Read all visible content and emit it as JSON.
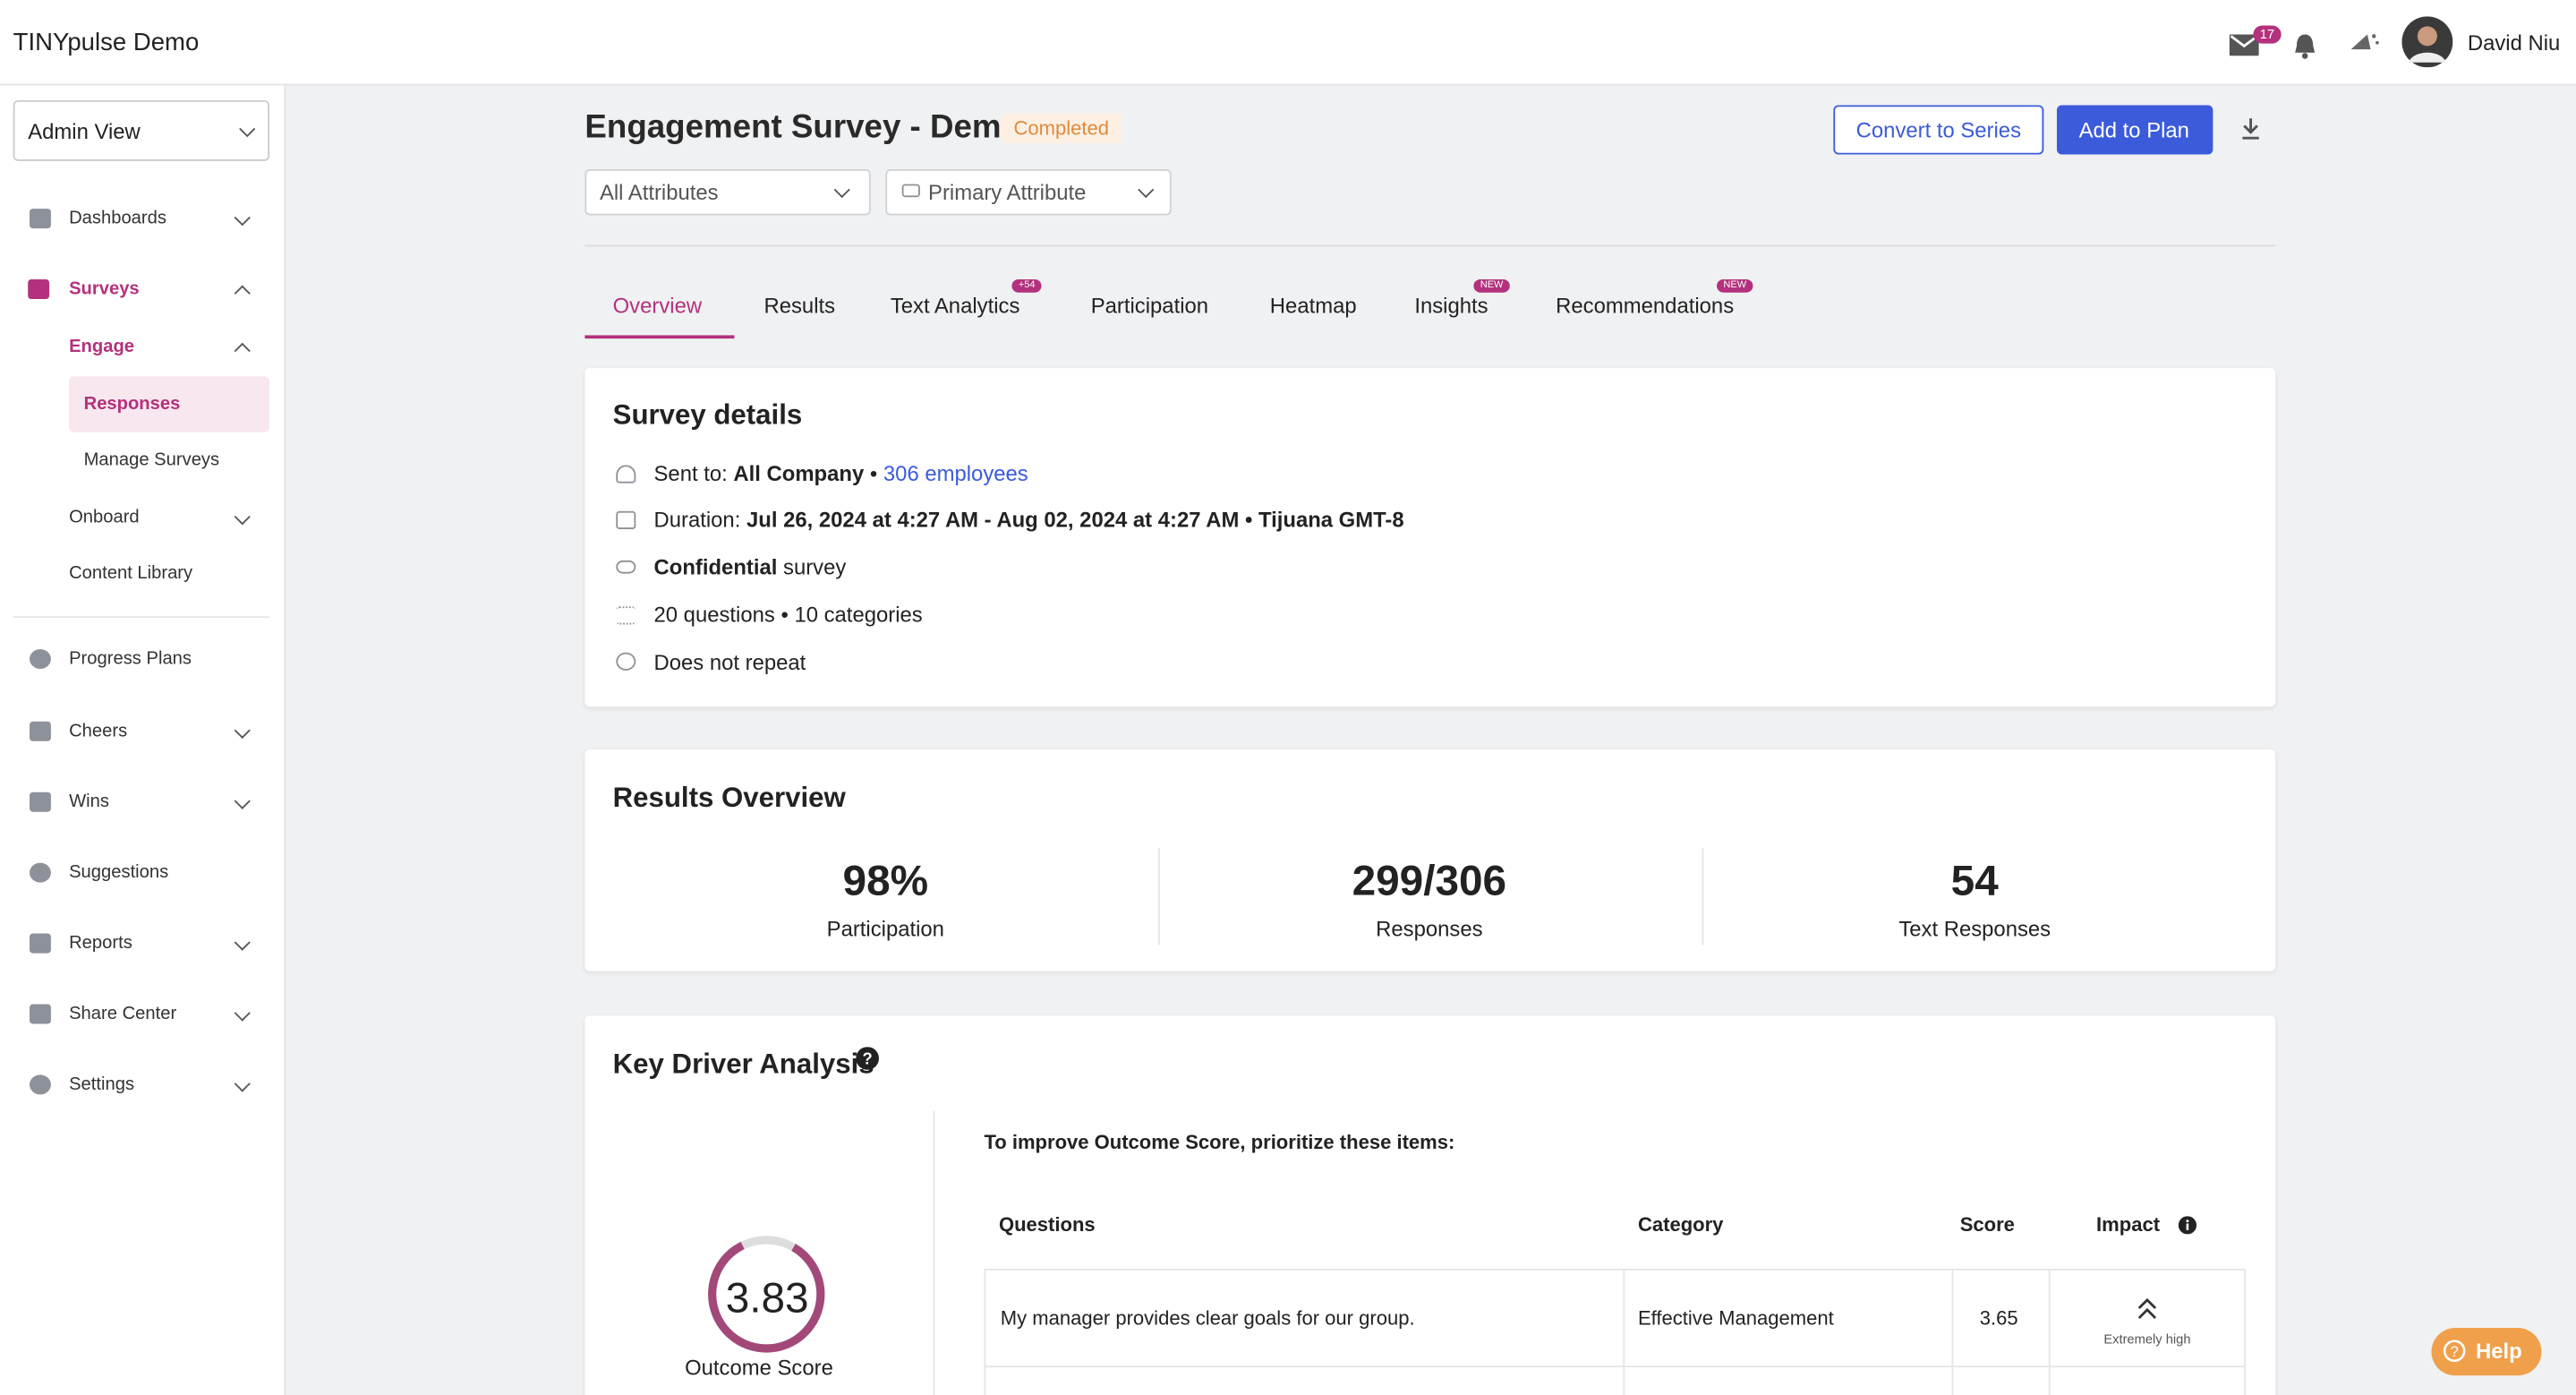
{
  "header": {
    "app_title": "TINYpulse Demo",
    "mail_count": "17",
    "user_name": "David Niu"
  },
  "sidebar": {
    "view_select": "Admin View",
    "items": [
      "Dashboards",
      "Surveys",
      "Engage",
      "Responses",
      "Manage Surveys",
      "Onboard",
      "Content Library",
      "Progress Plans",
      "Cheers",
      "Wins",
      "Suggestions",
      "Reports",
      "Share Center",
      "Settings"
    ]
  },
  "survey": {
    "title": "Engagement Survey - Demo",
    "status": "Completed",
    "actions": [
      "Convert to Series",
      "Add to Plan"
    ],
    "filters": [
      "All Attributes",
      "Primary Attribute"
    ],
    "tabs": [
      "Overview",
      "Results",
      "Text Analytics",
      "Participation",
      "Heatmap",
      "Insights",
      "Recommendations"
    ],
    "tab_badges": {
      "text_analytics": "+54",
      "insights": "NEW",
      "recommendations": "NEW"
    }
  },
  "details": {
    "title": "Survey details",
    "sent_to_label": "Sent to:",
    "sent_to_value": "All Company",
    "sent_to_count": "306 employees",
    "duration_label": "Duration:",
    "duration_value": "Jul 26, 2024 at 4:27 AM - Aug 02, 2024 at 4:27 AM • Tijuana GMT-8",
    "confidential": "Confidential",
    "confidential_suffix": "survey",
    "questions": "20 questions • 10 categories",
    "repeat": "Does not repeat"
  },
  "results": {
    "title": "Results Overview",
    "stats": [
      {
        "value": "98%",
        "label": "Participation"
      },
      {
        "value": "299/306",
        "label": "Responses"
      },
      {
        "value": "54",
        "label": "Text Responses"
      }
    ]
  },
  "key_driver": {
    "title": "Key Driver Analysis",
    "outcome_score": "3.83",
    "outcome_label": "Outcome Score",
    "prompt": "To improve Outcome Score, prioritize these items:",
    "columns": [
      "Questions",
      "Category",
      "Score",
      "Impact"
    ],
    "rows": [
      [
        "My manager provides clear goals for our group.",
        "Effective Management",
        "3.65",
        "Extremely high"
      ]
    ]
  },
  "help": "Help"
}
